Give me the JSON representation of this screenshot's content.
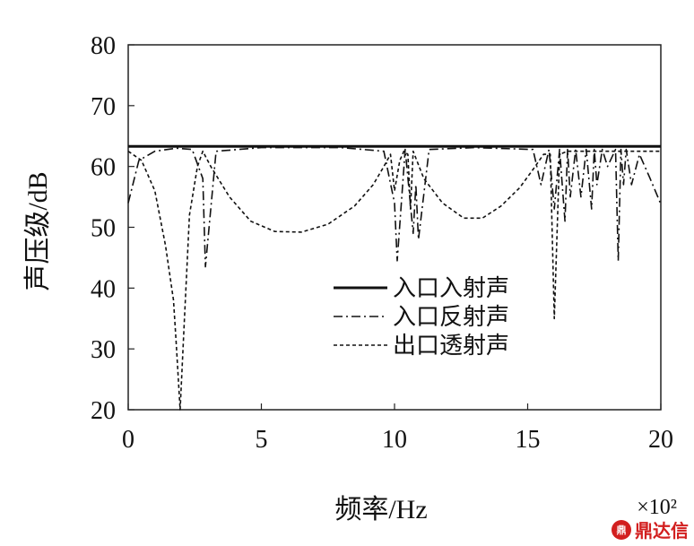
{
  "chart_data": {
    "type": "line",
    "xlabel": "频率/Hz",
    "x_multiplier": "×10²",
    "ylabel": "声压级/dB",
    "xlim": [
      0,
      20
    ],
    "ylim": [
      20,
      80
    ],
    "x_ticks": [
      "0",
      "5",
      "10",
      "15",
      "20"
    ],
    "y_ticks": [
      "20",
      "30",
      "40",
      "50",
      "60",
      "70",
      "80"
    ],
    "legend_position": "middle-right",
    "grid": false,
    "series": [
      {
        "name": "入口入射声",
        "style": "solid",
        "x": [
          0,
          20
        ],
        "y": [
          63.3,
          63.3
        ]
      },
      {
        "name": "入口反射声",
        "style": "dash-dot",
        "x": [
          0,
          0.4,
          1.0,
          1.8,
          2.4,
          2.8,
          2.9,
          3.3,
          5,
          8,
          9.6,
          10.0,
          10.1,
          10.4,
          10.7,
          10.8,
          10.9,
          11.3,
          13,
          15.2,
          15.5,
          15.8,
          16.0,
          16.2,
          16.4,
          16.5,
          16.6,
          16.8,
          17.0,
          17.2,
          17.4,
          17.5,
          17.6,
          17.8,
          18.0,
          18.3,
          18.4,
          18.5,
          18.6,
          18.7,
          18.9,
          19.2,
          19.6,
          20
        ],
        "y": [
          54,
          61,
          62.5,
          63,
          62.8,
          58,
          43.5,
          62.5,
          63.1,
          63.1,
          62.5,
          54,
          44.5,
          62.8,
          49,
          57,
          48,
          62.8,
          63.1,
          62.8,
          57,
          62.8,
          53,
          62.8,
          51,
          62.8,
          55,
          62.8,
          55,
          62.8,
          53,
          62.8,
          57,
          62.8,
          60,
          62.8,
          44.5,
          62.8,
          57,
          62.8,
          57,
          62,
          58,
          53.8
        ]
      },
      {
        "name": "出口透射声",
        "style": "dashed",
        "x": [
          0,
          0.5,
          1.0,
          1.4,
          1.7,
          1.8,
          1.95,
          2.1,
          2.3,
          2.6,
          2.8,
          3.1,
          3.8,
          4.6,
          5.5,
          6.5,
          7.5,
          8.5,
          9.2,
          9.6,
          9.85,
          10.0,
          10.2,
          10.35,
          10.5,
          10.6,
          10.7,
          11.1,
          11.8,
          12.6,
          13.3,
          14.0,
          14.7,
          15.2,
          15.6,
          15.85,
          16.0,
          16.2,
          16.5,
          17,
          17.5,
          18,
          18.5,
          19,
          20
        ],
        "y": [
          62.5,
          61,
          56,
          47,
          38,
          31,
          20,
          34,
          52,
          60,
          62.5,
          60,
          55,
          51,
          49.3,
          49.2,
          50.5,
          53.5,
          57,
          60,
          62,
          56,
          61,
          62.5,
          62,
          53,
          62.5,
          58,
          54,
          51.5,
          51.5,
          53.5,
          56.5,
          59.5,
          62,
          62,
          35,
          62,
          62.5,
          62.5,
          62.5,
          62.5,
          62.5,
          62.5,
          62.5
        ]
      }
    ]
  },
  "watermark": {
    "logo": "鼎",
    "text": "鼎达信"
  }
}
